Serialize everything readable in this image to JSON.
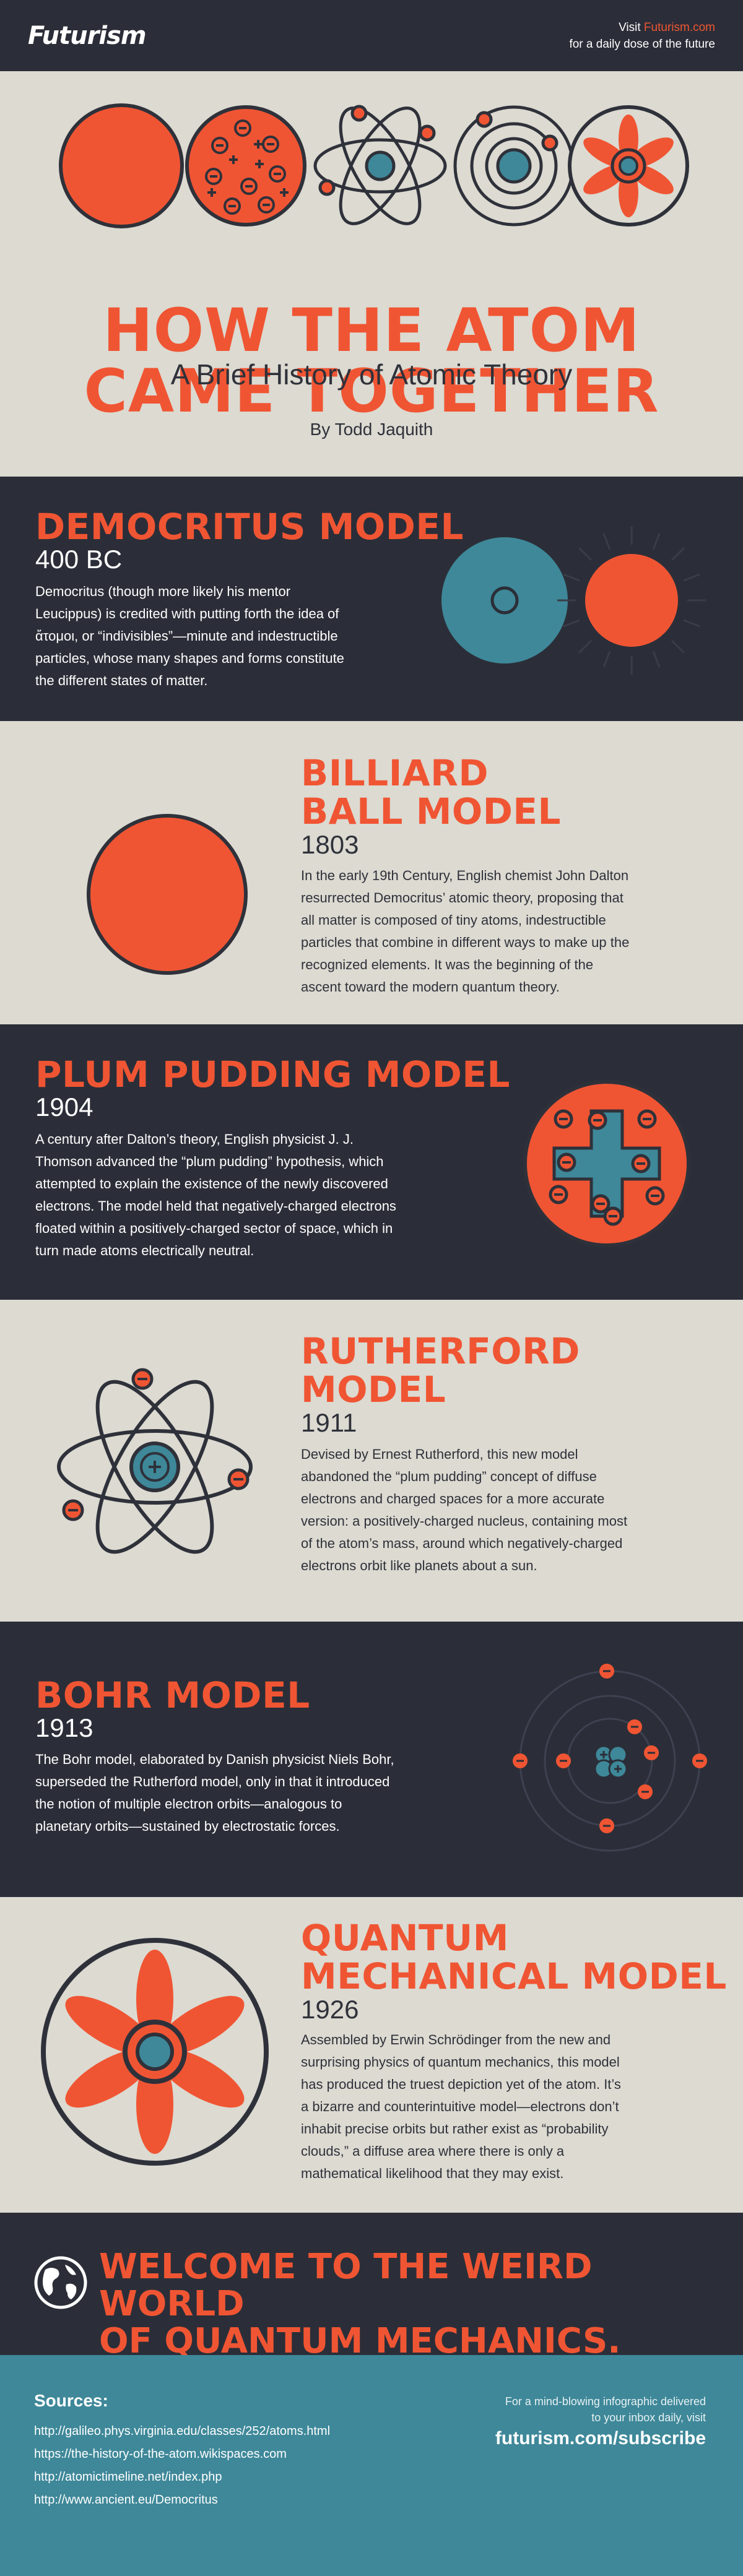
{
  "header": {
    "logo": "Futurism",
    "visit_prefix": "Visit ",
    "visit_link": "Futurism.com",
    "visit_tagline": "for a daily dose of the future"
  },
  "hero": {
    "title_line1": "HOW THE ATOM",
    "title_line2": "CAME TOGETHER",
    "subtitle": "A Brief History of Atomic Theory",
    "byline": "By Todd Jaquith"
  },
  "models": [
    {
      "title": "DEMOCRITUS MODEL",
      "year": "400 BC",
      "text": [
        "Democritus (though more likely his mentor",
        "Leucippus) is credited with putting forth the idea of",
        "ἄτομοι, or “indivisibles”—minute and indestructible",
        "particles, whose many shapes and forms constitute",
        "the different states of matter."
      ]
    },
    {
      "title_line1": "BILLIARD",
      "title_line2": "BALL MODEL",
      "year": "1803",
      "text": [
        "In the early 19th Century, English chemist John Dalton",
        "resurrected Democritus’ atomic theory, proposing that",
        "all matter is composed of tiny atoms, indestructible",
        "particles that combine in different ways to make up the",
        "recognized elements.  It was the beginning of the",
        "ascent toward the modern quantum theory."
      ]
    },
    {
      "title": "PLUM PUDDING MODEL",
      "year": "1904",
      "text": [
        "A century after Dalton’s theory, English physicist J. J.",
        "Thomson advanced the “plum pudding” hypothesis, which",
        "attempted to explain the existence of the newly discovered",
        "electrons.  The model held that negatively-charged electrons",
        "floated within a positively-charged sector of space, which in",
        "turn made atoms electrically neutral."
      ]
    },
    {
      "title_line1": "RUTHERFORD",
      "title_line2": "MODEL",
      "year": "1911",
      "text": [
        "Devised by Ernest Rutherford, this new model",
        "abandoned the “plum pudding” concept of diffuse",
        "electrons and charged spaces for a more accurate",
        "version: a positively-charged nucleus, containing most",
        "of the atom’s mass, around which negatively-charged",
        "electrons orbit like planets about a sun."
      ]
    },
    {
      "title": "BOHR MODEL",
      "year": "1913",
      "text": [
        "The Bohr model, elaborated by Danish physicist Niels Bohr,",
        "superseded the Rutherford model, only in that it introduced",
        "the notion of multiple electron orbits—analogous to",
        "planetary orbits—sustained by electrostatic forces."
      ]
    },
    {
      "title_line1": "QUANTUM",
      "title_line2": "MECHANICAL MODEL",
      "year": "1926",
      "text": [
        "Assembled by Erwin Schrödinger from the new and",
        "surprising physics of quantum mechanics, this model",
        "has produced the truest depiction yet of the atom.  It’s",
        "a bizarre and counterintuitive model—electrons don’t",
        "inhabit precise orbits but rather exist as “probability",
        "clouds,” a diffuse area where there is only a",
        "mathematical likelihood that they may exist."
      ]
    }
  ],
  "welcome": {
    "line1": "WELCOME TO THE WEIRD WORLD",
    "line2": "OF QUANTUM MECHANICS."
  },
  "footer": {
    "sources_title": "Sources:",
    "sources": [
      "http://galileo.phys.virginia.edu/classes/252/atoms.html",
      "https://the-history-of-the-atom.wikispaces.com",
      "http://atomictimeline.net/index.php",
      "http://www.ancient.eu/Democritus"
    ],
    "promo_line1": "For a mind-blowing infographic delivered",
    "promo_line2": "to your inbox daily, visit",
    "promo_link": "futurism.com/subscribe"
  },
  "colors": {
    "accent": "#f05533",
    "dark": "#2b2e38",
    "light": "#dcdad1",
    "teal": "#3e8899"
  }
}
